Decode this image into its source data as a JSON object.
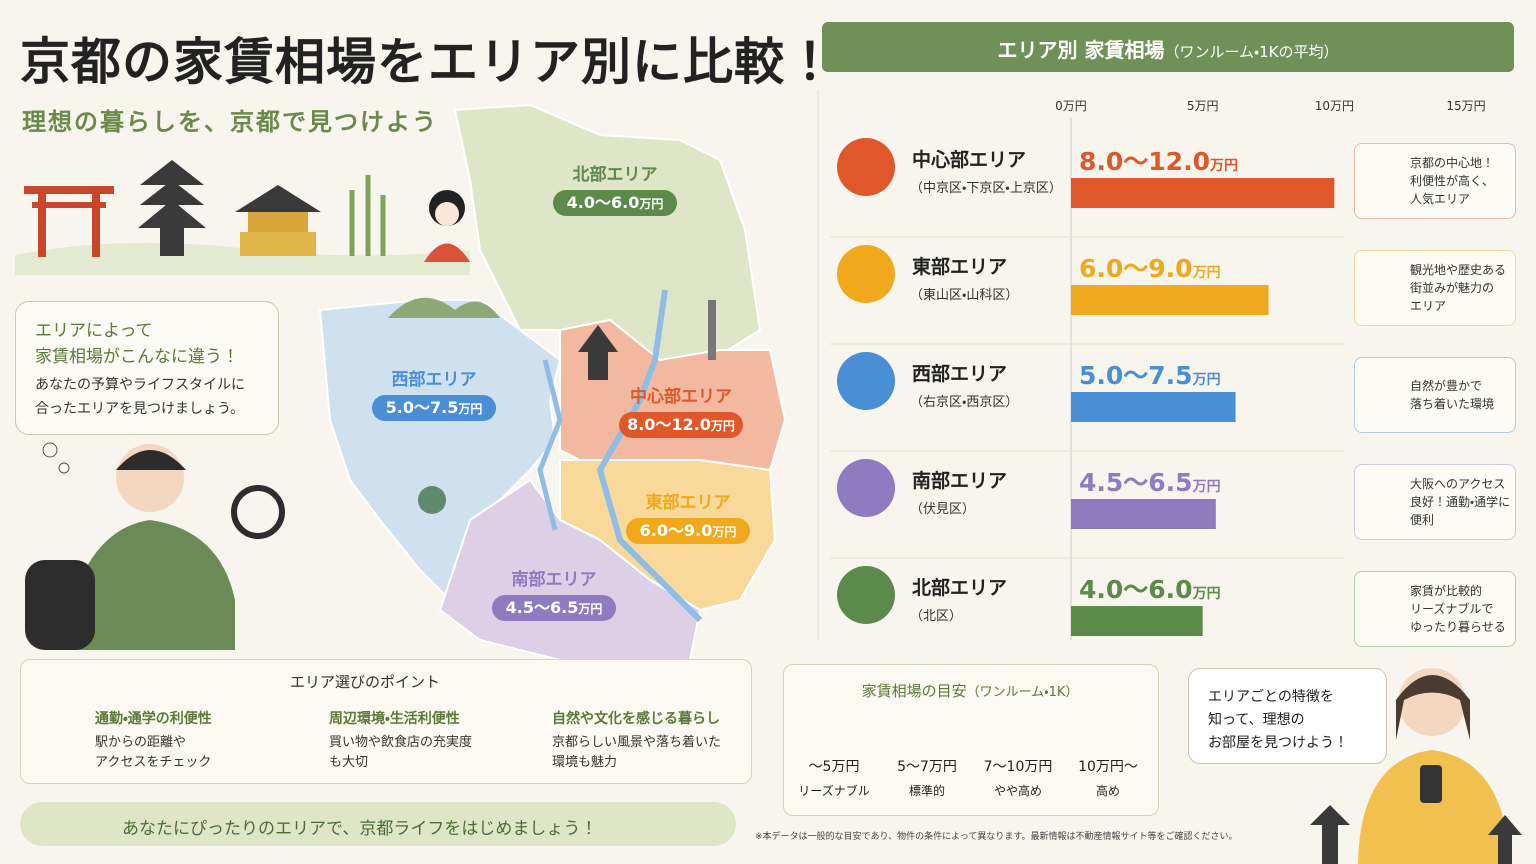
{
  "header": {
    "title": "京都の家賃相場をエリア別に比較！",
    "subtitle": "理想の暮らしを、京都で見つけよう"
  },
  "speech": {
    "lines": [
      "エリアによって",
      "家賃相場がこんなに違う！",
      "あなたの予算やライフスタイルに",
      "合ったエリアを見つけましょう。"
    ]
  },
  "chart_data": {
    "type": "bar",
    "orientation": "horizontal",
    "title": "エリア別 家賃相場",
    "subtitle": "（ワンルーム・1Kの平均）",
    "categories": [
      "中心部エリア",
      "東部エリア",
      "西部エリア",
      "南部エリア",
      "北部エリア"
    ],
    "sublabels": [
      "（中京区・下京区・上京区）",
      "（東山区・山科区）",
      "（右京区・西京区）",
      "（伏見区）",
      "（北区）"
    ],
    "range_labels": [
      "8.0～12.0",
      "6.0～9.0",
      "5.0～7.5",
      "4.5～6.5",
      "4.0～6.0"
    ],
    "unit": "万円",
    "values": [
      10,
      7.5,
      6.25,
      5.5,
      5
    ],
    "colors": [
      "#e0582a",
      "#f0a81c",
      "#4a8fd6",
      "#8e7bc0",
      "#5c8a4a"
    ],
    "xlim": [
      0,
      15
    ],
    "xticks": [
      {
        "value": 0,
        "label": "0万円"
      },
      {
        "value": 5,
        "label": "5万円"
      },
      {
        "value": 10,
        "label": "10万円"
      },
      {
        "value": 15,
        "label": "15万円"
      }
    ],
    "notes": [
      [
        "京都の中心地！",
        "利便性が高く、",
        "人気エリア"
      ],
      [
        "観光地や歴史ある",
        "街並みが魅力の",
        "エリア"
      ],
      [
        "自然が豊かで",
        "落ち着いた環境"
      ],
      [
        "大阪へのアクセス",
        "良好！通勤・通学に",
        "便利"
      ],
      [
        "家賃が比較的",
        "リーズナブルで",
        "ゆったり暮らせる"
      ]
    ]
  },
  "points": {
    "title": "エリア選びのポイント",
    "items": [
      {
        "title": "通勤・通学の利便性",
        "lines": [
          "駅からの距離や",
          "アクセスをチェック"
        ]
      },
      {
        "title": "周辺環境・生活利便性",
        "lines": [
          "買い物や飲食店の充実度",
          "も大切"
        ]
      },
      {
        "title": "自然や文化を感じる暮らし",
        "lines": [
          "京都らしい風景や落ち着いた",
          "環境も魅力"
        ]
      }
    ]
  },
  "banner": "あなたにぴったりのエリアで、京都ライフをはじめましょう！",
  "guide": {
    "title": "家賃相場の目安",
    "subtitle": "（ワンルーム・1K）",
    "items": [
      {
        "range": "～5万円",
        "label": "リーズナブル"
      },
      {
        "range": "5～7万円",
        "label": "標準的"
      },
      {
        "range": "7～10万円",
        "label": "やや高め"
      },
      {
        "range": "10万円～",
        "label": "高め"
      }
    ]
  },
  "bubble": {
    "lines": [
      "エリアごとの特徴を",
      "知って、理想の",
      "お部屋を見つけよう！"
    ]
  },
  "footnote": "※本データは一般的な目安であり、物件の条件によって異なります。最新情報は不動産情報サイト等をご確認ください。"
}
